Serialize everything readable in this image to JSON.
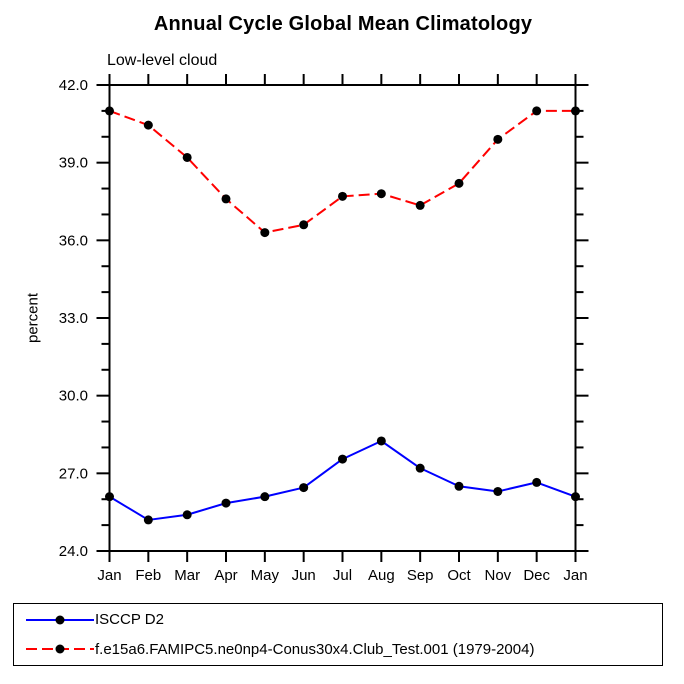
{
  "chart_data": {
    "type": "line",
    "title": "Annual Cycle Global Mean Climatology",
    "subtitle": "Low-level cloud",
    "xlabel": "",
    "ylabel": "percent",
    "categories": [
      "Jan",
      "Feb",
      "Mar",
      "Apr",
      "May",
      "Jun",
      "Jul",
      "Aug",
      "Sep",
      "Oct",
      "Nov",
      "Dec",
      "Jan"
    ],
    "ylim": [
      24,
      42
    ],
    "ytick_values": [
      24,
      27,
      30,
      33,
      36,
      39,
      42
    ],
    "ytick_labels": [
      "24.0",
      "27.0",
      "30.0",
      "33.0",
      "36.0",
      "39.0",
      "42.0"
    ],
    "ytick_minor_step": 1,
    "grid": false,
    "legend_position": "bottom-left-box",
    "axis_color": "#000000",
    "series": [
      {
        "name": "ISCCP D2",
        "color": "#0000ff",
        "line_style": "solid",
        "marker": "filled-circle",
        "marker_color": "#000000",
        "values": [
          26.1,
          25.2,
          25.4,
          25.85,
          26.1,
          26.45,
          27.55,
          28.25,
          27.2,
          26.5,
          26.3,
          26.65,
          26.1
        ]
      },
      {
        "name": "f.e15a6.FAMIPC5.ne0np4-Conus30x4.Club_Test.001 (1979-2004)",
        "color": "#ff0000",
        "line_style": "dashed",
        "marker": "filled-circle",
        "marker_color": "#000000",
        "values": [
          41.0,
          40.45,
          39.2,
          37.6,
          36.3,
          36.6,
          37.7,
          37.8,
          37.35,
          38.2,
          39.9,
          41.0,
          41.0
        ]
      }
    ]
  }
}
